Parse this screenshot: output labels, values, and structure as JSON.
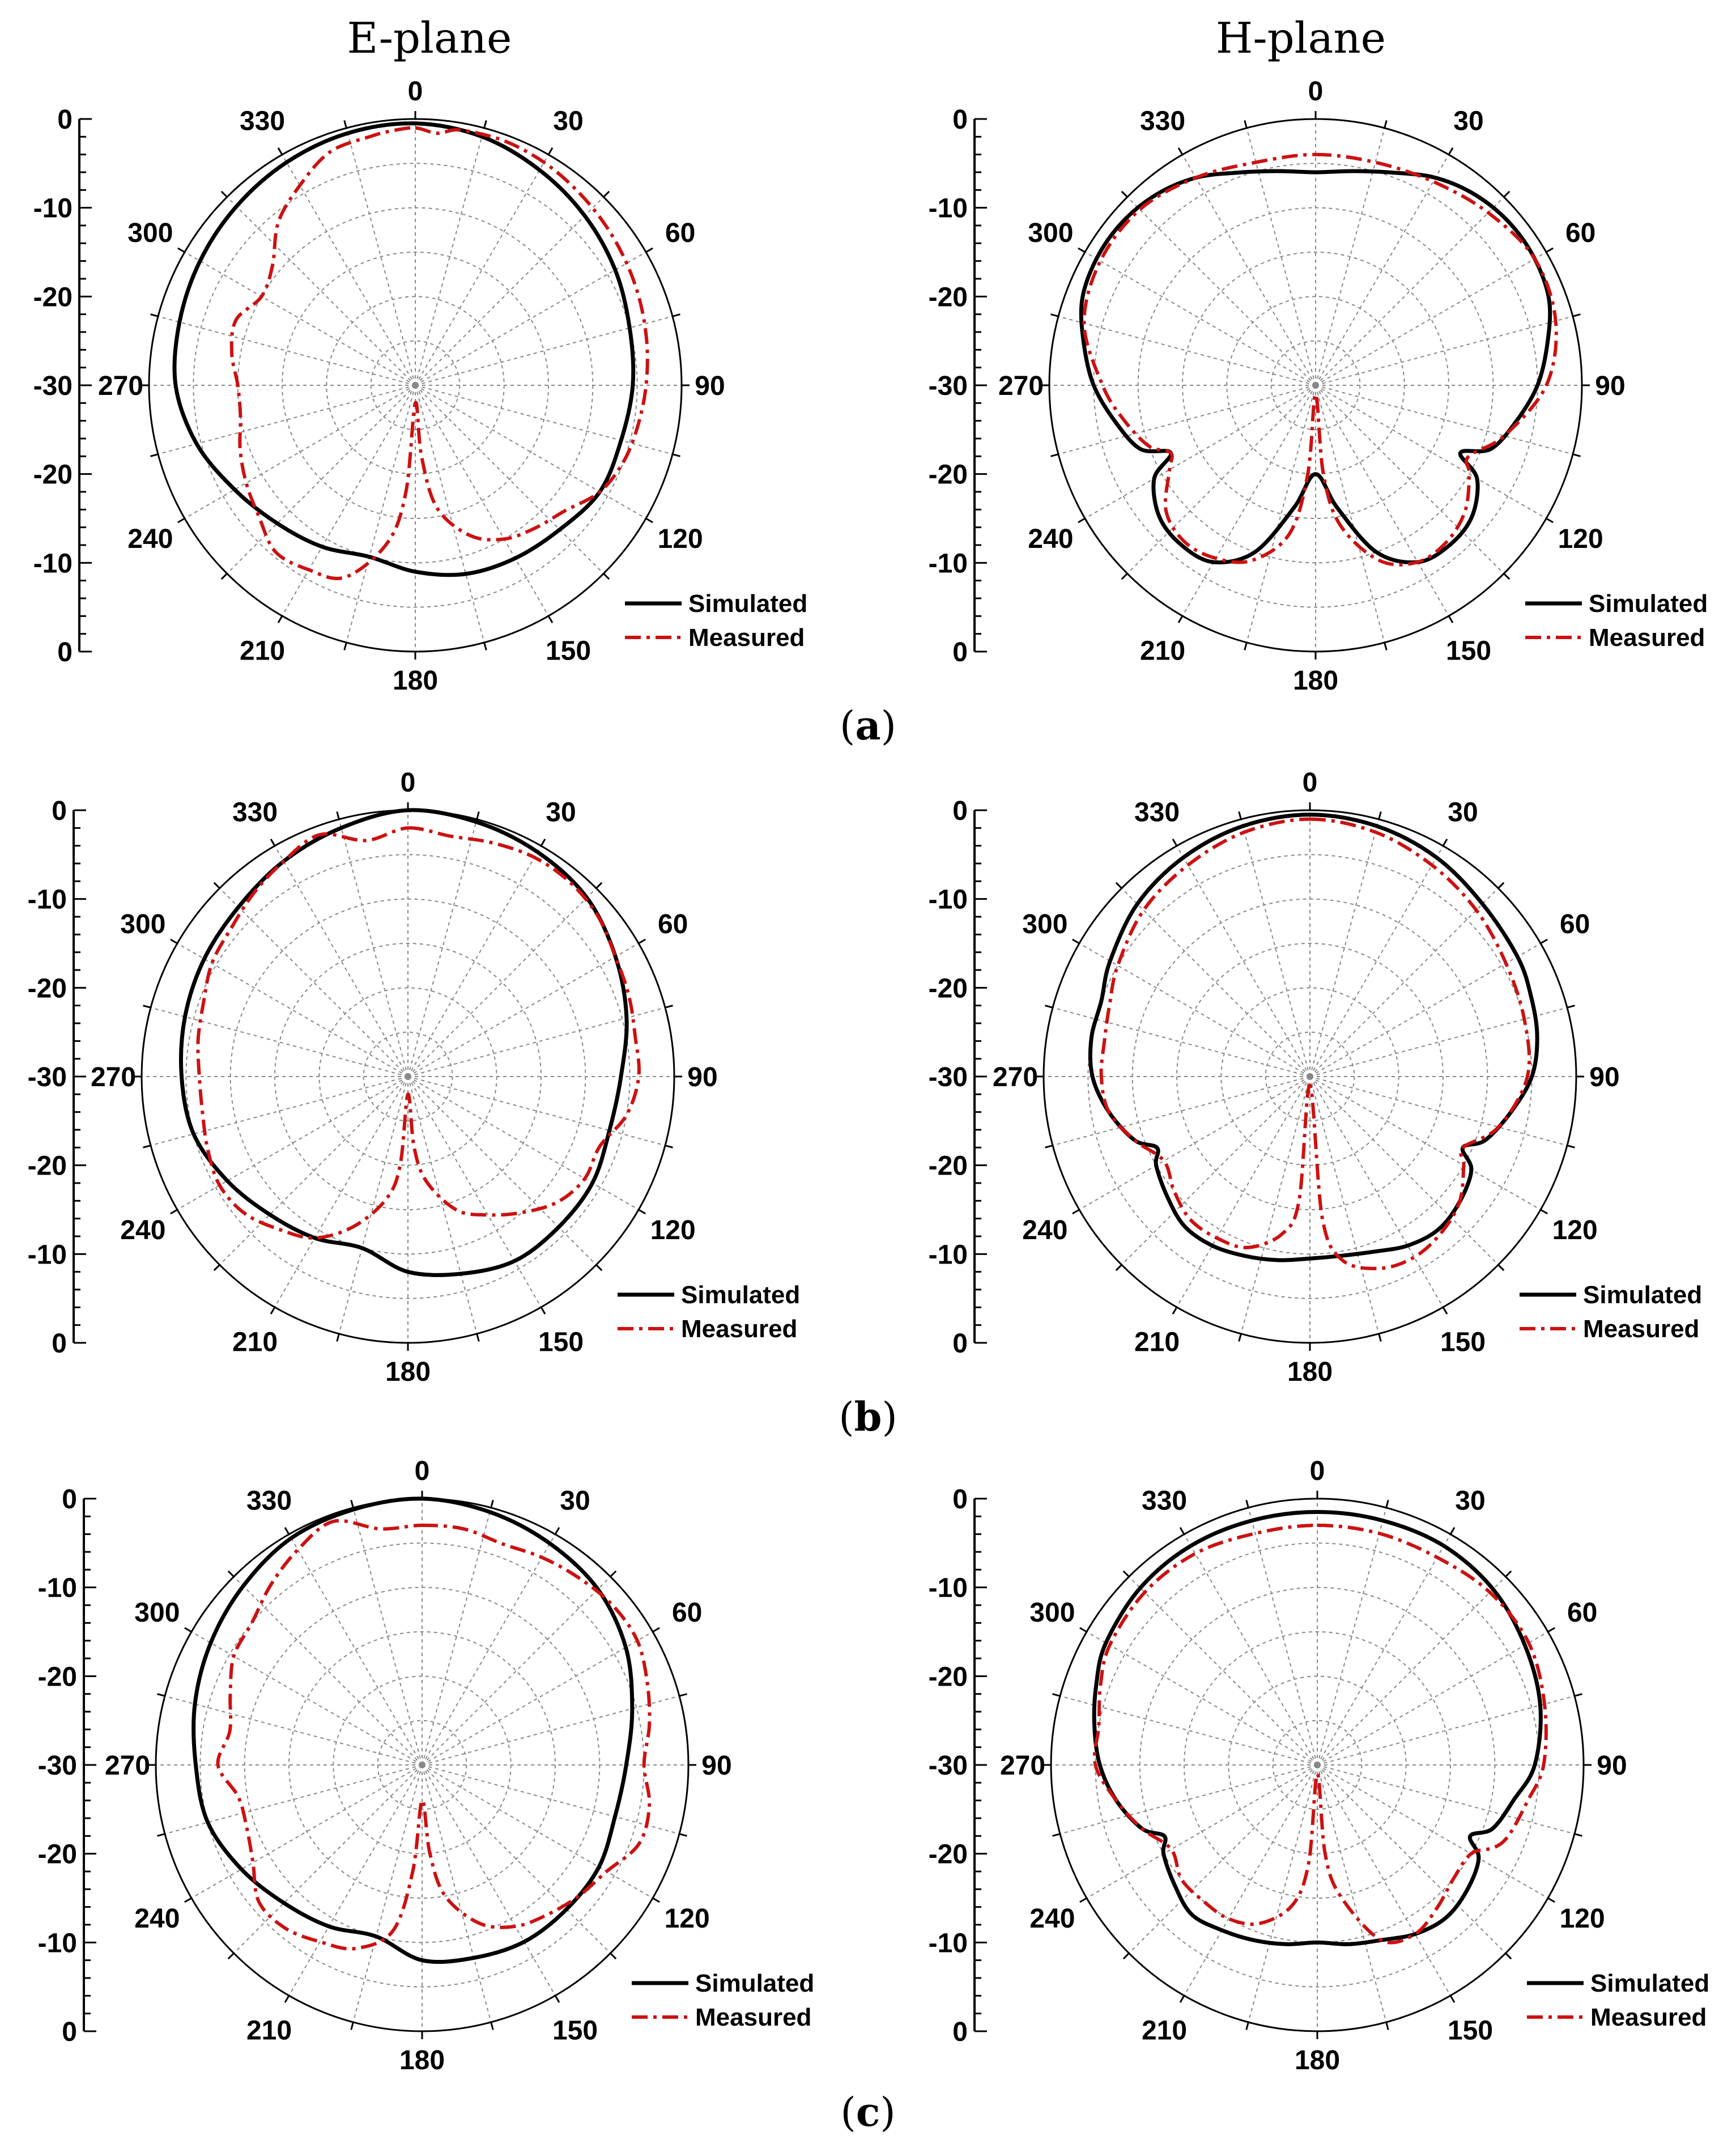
{
  "column_titles": [
    "E-plane",
    "H-plane"
  ],
  "panel_labels": [
    "a",
    "b",
    "c"
  ],
  "legend": {
    "simulated": "Simulated",
    "measured": "Measured"
  },
  "colors": {
    "simulated": "#000000",
    "measured": "#cc1111",
    "grid": "#888888"
  },
  "radial_scale": {
    "type": "polar-dB",
    "min": -30,
    "max": 0,
    "step": 10,
    "grid_step": 5,
    "center_value": -30
  },
  "chart_data": [
    {
      "id": "a-E",
      "type": "line",
      "polar": true,
      "row": "a",
      "column_title": "E-plane",
      "angle_ticks": [
        "0",
        "30",
        "60",
        "90",
        "120",
        "150",
        "180",
        "210",
        "240",
        "270",
        "300",
        "330"
      ],
      "radial_ticks": [
        "0",
        "-10",
        "-20",
        "-30",
        "-20",
        "-10",
        "0"
      ],
      "series": [
        {
          "name": "Simulated",
          "theta": [
            0,
            15,
            30,
            45,
            60,
            75,
            90,
            105,
            120,
            135,
            150,
            165,
            180,
            195,
            210,
            225,
            240,
            255,
            270,
            285,
            300,
            315,
            330,
            345,
            360
          ],
          "r": [
            -0.5,
            -1,
            -2,
            -3,
            -4,
            -5,
            -5.5,
            -6,
            -6,
            -7,
            -7.5,
            -8,
            -9,
            -10,
            -9,
            -8,
            -6.5,
            -4.5,
            -3,
            -2.5,
            -2,
            -1.5,
            -1,
            -0.6,
            -0.5
          ]
        },
        {
          "name": "Measured",
          "theta": [
            0,
            5,
            10,
            20,
            30,
            40,
            50,
            60,
            70,
            80,
            90,
            100,
            110,
            120,
            130,
            140,
            150,
            160,
            170,
            175,
            180,
            185,
            190,
            200,
            210,
            220,
            230,
            240,
            250,
            260,
            270,
            280,
            290,
            300,
            310,
            320,
            330,
            340,
            350,
            355,
            360
          ],
          "r": [
            -1,
            -1.5,
            -0.8,
            -0.7,
            -1,
            -1.5,
            -2,
            -2.5,
            -3,
            -3.5,
            -4,
            -4.5,
            -5,
            -6,
            -8,
            -9,
            -10,
            -12,
            -16,
            -22,
            -28,
            -18,
            -12,
            -7,
            -6,
            -5.5,
            -7,
            -8,
            -9,
            -10,
            -10,
            -9,
            -8.5,
            -10,
            -9,
            -6,
            -4,
            -2,
            -1.5,
            -1.2,
            -1
          ]
        }
      ]
    },
    {
      "id": "a-H",
      "type": "line",
      "polar": true,
      "row": "a",
      "column_title": "H-plane",
      "angle_ticks": [
        "0",
        "30",
        "60",
        "90",
        "120",
        "150",
        "180",
        "210",
        "240",
        "270",
        "300",
        "330"
      ],
      "radial_ticks": [
        "0",
        "-10",
        "-20",
        "-30",
        "-20",
        "-10",
        "0"
      ],
      "series": [
        {
          "name": "Simulated",
          "theta": [
            0,
            10,
            20,
            30,
            40,
            50,
            60,
            70,
            80,
            90,
            100,
            110,
            115,
            120,
            130,
            140,
            150,
            160,
            170,
            180,
            190,
            200,
            210,
            220,
            230,
            240,
            245,
            250,
            260,
            270,
            280,
            290,
            300,
            310,
            320,
            330,
            340,
            350,
            360
          ],
          "r": [
            -6,
            -5.5,
            -4.5,
            -3,
            -2,
            -1.5,
            -1.5,
            -2,
            -3.5,
            -5,
            -7,
            -9,
            -12,
            -9,
            -7,
            -6.5,
            -7,
            -10,
            -16,
            -20,
            -16,
            -10,
            -7,
            -6.5,
            -7,
            -9,
            -12,
            -9,
            -7,
            -5,
            -3.5,
            -2,
            -1.5,
            -1.5,
            -2,
            -3,
            -4.5,
            -5.5,
            -6
          ]
        },
        {
          "name": "Measured",
          "theta": [
            0,
            15,
            30,
            45,
            60,
            75,
            90,
            105,
            115,
            120,
            130,
            140,
            150,
            160,
            170,
            175,
            180,
            185,
            190,
            200,
            210,
            220,
            230,
            240,
            245,
            250,
            260,
            270,
            285,
            300,
            315,
            330,
            345,
            360
          ],
          "r": [
            -4,
            -4,
            -3.5,
            -2.5,
            -1.5,
            -2,
            -4,
            -8,
            -11,
            -10,
            -8,
            -7,
            -7,
            -9,
            -14,
            -20,
            -29,
            -20,
            -13,
            -9,
            -7.5,
            -7,
            -8,
            -11,
            -12,
            -10,
            -8,
            -6,
            -3,
            -2,
            -2,
            -3,
            -4,
            -4
          ]
        }
      ]
    },
    {
      "id": "b-E",
      "type": "line",
      "polar": true,
      "row": "b",
      "column_title": "E-plane",
      "angle_ticks": [
        "0",
        "30",
        "60",
        "90",
        "120",
        "150",
        "180",
        "210",
        "240",
        "270",
        "300",
        "330"
      ],
      "radial_ticks": [
        "0",
        "-10",
        "-20",
        "-30",
        "-20",
        "-10",
        "0"
      ],
      "series": [
        {
          "name": "Simulated",
          "theta": [
            0,
            15,
            30,
            45,
            60,
            75,
            90,
            105,
            120,
            135,
            150,
            165,
            180,
            195,
            210,
            225,
            240,
            255,
            270,
            285,
            300,
            315,
            330,
            345,
            360
          ],
          "r": [
            0,
            -0.3,
            -0.8,
            -1.5,
            -3,
            -4.5,
            -6,
            -6.5,
            -6,
            -6,
            -6,
            -7,
            -8,
            -10,
            -9,
            -8,
            -6.5,
            -5,
            -4.5,
            -4,
            -3.5,
            -3,
            -2,
            -1,
            0
          ]
        },
        {
          "name": "Measured",
          "theta": [
            0,
            10,
            20,
            30,
            40,
            50,
            60,
            70,
            80,
            90,
            100,
            110,
            120,
            130,
            140,
            150,
            160,
            170,
            175,
            180,
            185,
            190,
            200,
            210,
            220,
            230,
            240,
            250,
            260,
            270,
            280,
            290,
            300,
            310,
            320,
            330,
            340,
            350,
            360
          ],
          "r": [
            -2,
            -2.5,
            -2,
            -1.5,
            -1.5,
            -2,
            -3,
            -3.5,
            -4,
            -4,
            -5,
            -7,
            -7,
            -8,
            -10,
            -12,
            -14,
            -18,
            -22,
            -28,
            -20,
            -16,
            -12,
            -9,
            -7.5,
            -6,
            -5.5,
            -6,
            -6.5,
            -6.5,
            -6,
            -5.5,
            -4.5,
            -4,
            -3,
            -2,
            -1,
            -3,
            -2
          ]
        }
      ]
    },
    {
      "id": "b-H",
      "type": "line",
      "polar": true,
      "row": "b",
      "column_title": "H-plane",
      "angle_ticks": [
        "0",
        "30",
        "60",
        "90",
        "120",
        "150",
        "180",
        "210",
        "240",
        "270",
        "300",
        "330"
      ],
      "radial_ticks": [
        "0",
        "-10",
        "-20",
        "-30",
        "-20",
        "-10",
        "0"
      ],
      "series": [
        {
          "name": "Simulated",
          "theta": [
            0,
            15,
            30,
            45,
            60,
            70,
            80,
            90,
            100,
            110,
            115,
            120,
            130,
            140,
            150,
            160,
            170,
            180,
            190,
            200,
            210,
            220,
            230,
            240,
            245,
            250,
            260,
            270,
            280,
            290,
            300,
            315,
            330,
            345,
            360
          ],
          "r": [
            -0.5,
            -0.8,
            -1.5,
            -2.5,
            -3,
            -3.5,
            -4,
            -5,
            -7,
            -9,
            -11,
            -9,
            -8,
            -7.5,
            -8,
            -9,
            -9.5,
            -9.5,
            -9,
            -8.5,
            -8,
            -8,
            -9,
            -10,
            -11,
            -9,
            -7,
            -5.5,
            -5,
            -5,
            -4,
            -2.5,
            -1.5,
            -0.8,
            -0.5
          ]
        },
        {
          "name": "Measured",
          "theta": [
            0,
            15,
            30,
            45,
            60,
            75,
            90,
            105,
            115,
            120,
            130,
            140,
            150,
            160,
            170,
            175,
            180,
            185,
            190,
            200,
            210,
            220,
            230,
            240,
            250,
            260,
            270,
            280,
            290,
            300,
            315,
            330,
            345,
            360
          ],
          "r": [
            -1,
            -1.5,
            -2.5,
            -3.5,
            -4.5,
            -5,
            -5.5,
            -8,
            -11,
            -10,
            -8,
            -7,
            -6.5,
            -7,
            -9,
            -14,
            -29,
            -16,
            -12,
            -9.5,
            -9,
            -9,
            -10,
            -11,
            -9,
            -7,
            -6.5,
            -6.5,
            -6,
            -5,
            -3.5,
            -2.5,
            -1.5,
            -1
          ]
        }
      ]
    },
    {
      "id": "c-E",
      "type": "line",
      "polar": true,
      "row": "c",
      "column_title": "E-plane",
      "angle_ticks": [
        "0",
        "30",
        "60",
        "90",
        "120",
        "150",
        "180",
        "210",
        "240",
        "270",
        "300",
        "330"
      ],
      "radial_ticks": [
        "0",
        "-10",
        "-20",
        "-30",
        "-20",
        "-10",
        "0"
      ],
      "series": [
        {
          "name": "Simulated",
          "theta": [
            0,
            15,
            30,
            45,
            60,
            75,
            90,
            105,
            120,
            135,
            150,
            165,
            180,
            195,
            210,
            225,
            240,
            255,
            270,
            285,
            300,
            315,
            330,
            345,
            360
          ],
          "r": [
            0,
            -0.5,
            -1.2,
            -2,
            -3.5,
            -5.5,
            -7,
            -7.5,
            -7,
            -7,
            -7,
            -7.5,
            -8,
            -10,
            -9,
            -8,
            -6.5,
            -5,
            -4.5,
            -3.5,
            -2.5,
            -1.5,
            -0.5,
            -0.2,
            0
          ]
        },
        {
          "name": "Measured",
          "theta": [
            0,
            10,
            20,
            30,
            40,
            50,
            60,
            70,
            80,
            90,
            100,
            110,
            120,
            130,
            140,
            150,
            160,
            170,
            175,
            180,
            185,
            190,
            200,
            210,
            220,
            230,
            240,
            250,
            260,
            270,
            280,
            290,
            300,
            310,
            320,
            330,
            340,
            350,
            360
          ],
          "r": [
            -3,
            -3,
            -3.5,
            -3,
            -2.5,
            -2,
            -2,
            -3,
            -4,
            -5,
            -4,
            -4,
            -6,
            -7,
            -8,
            -9,
            -11,
            -15,
            -20,
            -26,
            -18,
            -11,
            -8,
            -7,
            -6,
            -6,
            -8,
            -9,
            -9,
            -7,
            -8,
            -7,
            -5.5,
            -5,
            -3.5,
            -2,
            -0.8,
            -3,
            -3
          ]
        }
      ]
    },
    {
      "id": "c-H",
      "type": "line",
      "polar": true,
      "row": "c",
      "column_title": "H-plane",
      "angle_ticks": [
        "0",
        "30",
        "60",
        "90",
        "120",
        "150",
        "180",
        "210",
        "240",
        "270",
        "300",
        "330"
      ],
      "radial_ticks": [
        "0",
        "-10",
        "-20",
        "-30",
        "-20",
        "-10",
        "0"
      ],
      "series": [
        {
          "name": "Simulated",
          "theta": [
            0,
            15,
            30,
            45,
            60,
            75,
            90,
            100,
            110,
            115,
            120,
            130,
            140,
            150,
            160,
            170,
            180,
            190,
            200,
            210,
            220,
            230,
            240,
            245,
            250,
            260,
            270,
            280,
            290,
            300,
            315,
            330,
            345,
            360
          ],
          "r": [
            -1.5,
            -1.5,
            -1.5,
            -2,
            -3,
            -4,
            -5.5,
            -7.5,
            -9,
            -11,
            -9,
            -8,
            -7.5,
            -8,
            -9,
            -9.5,
            -10,
            -9.5,
            -9,
            -8.5,
            -8,
            -9,
            -10,
            -11,
            -9,
            -7,
            -5.5,
            -4.5,
            -3.5,
            -2.5,
            -1.8,
            -1.5,
            -1.5,
            -1.5
          ]
        },
        {
          "name": "Measured",
          "theta": [
            0,
            15,
            30,
            45,
            60,
            75,
            90,
            100,
            110,
            115,
            120,
            130,
            140,
            150,
            160,
            170,
            175,
            180,
            185,
            190,
            200,
            210,
            220,
            230,
            240,
            250,
            260,
            270,
            280,
            290,
            300,
            315,
            330,
            345,
            360
          ],
          "r": [
            -3,
            -3,
            -3,
            -2.5,
            -2.5,
            -3.5,
            -4.5,
            -6,
            -7,
            -8,
            -10,
            -10,
            -9,
            -8,
            -9,
            -15,
            -20,
            -29,
            -19,
            -14,
            -11,
            -10,
            -10,
            -10,
            -11,
            -9,
            -7,
            -5,
            -5,
            -4,
            -3,
            -2.5,
            -2.5,
            -3,
            -3
          ]
        }
      ]
    }
  ]
}
